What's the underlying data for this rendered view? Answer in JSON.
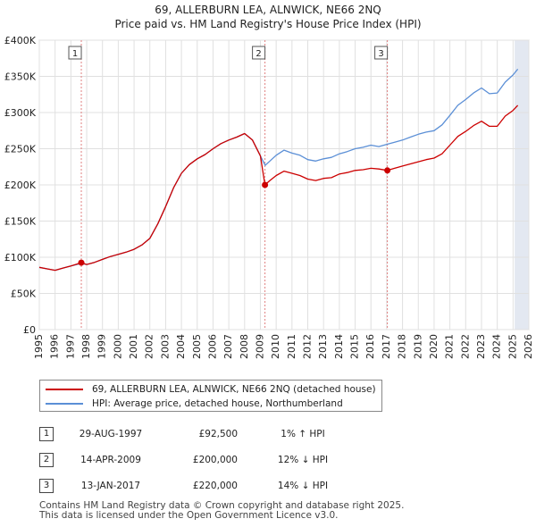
{
  "title_line1": "69, ALLERBURN LEA, ALNWICK, NE66 2NQ",
  "title_line2": "Price paid vs. HM Land Registry's House Price Index (HPI)",
  "legend": {
    "property": "69, ALLERBURN LEA, ALNWICK, NE66 2NQ (detached house)",
    "hpi": "HPI: Average price, detached house, Northumberland"
  },
  "transactions": [
    {
      "num": "1",
      "date": "29-AUG-1997",
      "price": "£92,500",
      "hpi": "1% ↑ HPI"
    },
    {
      "num": "2",
      "date": "14-APR-2009",
      "price": "£200,000",
      "hpi": "12% ↓ HPI"
    },
    {
      "num": "3",
      "date": "13-JAN-2017",
      "price": "£220,000",
      "hpi": "14% ↓ HPI"
    }
  ],
  "footer": {
    "line1": "Contains HM Land Registry data © Crown copyright and database right 2025.",
    "line2": "This data is licensed under the Open Government Licence v3.0."
  },
  "chart_data": {
    "type": "line",
    "xlabel": "",
    "ylabel": "",
    "xlim": [
      1995,
      2026
    ],
    "ylim": [
      0,
      400000
    ],
    "ytick_labels": [
      "£0",
      "£50K",
      "£100K",
      "£150K",
      "£200K",
      "£250K",
      "£300K",
      "£350K",
      "£400K"
    ],
    "ytick_values": [
      0,
      50000,
      100000,
      150000,
      200000,
      250000,
      300000,
      350000,
      400000
    ],
    "xtick_labels": [
      "1995",
      "1996",
      "1997",
      "1998",
      "1999",
      "2000",
      "2001",
      "2002",
      "2003",
      "2004",
      "2005",
      "2006",
      "2007",
      "2008",
      "2009",
      "2010",
      "2011",
      "2012",
      "2013",
      "2014",
      "2015",
      "2016",
      "2017",
      "2018",
      "2019",
      "2020",
      "2021",
      "2022",
      "2023",
      "2024",
      "2025",
      "2026"
    ],
    "xtick_values": [
      1995,
      1996,
      1997,
      1998,
      1999,
      2000,
      2001,
      2002,
      2003,
      2004,
      2005,
      2006,
      2007,
      2008,
      2009,
      2010,
      2011,
      2012,
      2013,
      2014,
      2015,
      2016,
      2017,
      2018,
      2019,
      2020,
      2021,
      2022,
      2023,
      2024,
      2025,
      2026
    ],
    "forecast_start": 2025.1,
    "sales": [
      {
        "label": "1",
        "x": 1997.66,
        "y": 92500
      },
      {
        "label": "2",
        "x": 2009.29,
        "y": 200000
      },
      {
        "label": "3",
        "x": 2017.04,
        "y": 220000
      }
    ],
    "series": [
      {
        "name": "HPI: Average price, detached house, Northumberland",
        "color": "#5b8fd6",
        "x": [
          1995,
          1995.5,
          1996,
          1996.5,
          1997,
          1997.66,
          1998,
          1998.5,
          1999,
          1999.5,
          2000,
          2000.5,
          2001,
          2001.5,
          2002,
          2002.5,
          2003,
          2003.5,
          2004,
          2004.5,
          2005,
          2005.5,
          2006,
          2006.5,
          2007,
          2007.5,
          2008,
          2008.5,
          2009,
          2009.3,
          2009.6,
          2010,
          2010.5,
          2011,
          2011.5,
          2012,
          2012.5,
          2013,
          2013.5,
          2014,
          2014.5,
          2015,
          2015.5,
          2016,
          2016.5,
          2017,
          2017.5,
          2018,
          2018.5,
          2019,
          2019.5,
          2020,
          2020.5,
          2021,
          2021.5,
          2022,
          2022.5,
          2023,
          2023.5,
          2024,
          2024.5,
          2025,
          2025.3
        ],
        "values": [
          86000,
          84000,
          82000,
          85000,
          88000,
          91500,
          90000,
          93000,
          97000,
          101000,
          104000,
          107000,
          111000,
          117000,
          126000,
          146000,
          170000,
          196000,
          216000,
          228000,
          236000,
          242000,
          250000,
          257000,
          262000,
          266000,
          271000,
          262000,
          240000,
          227000,
          233000,
          241000,
          248000,
          244000,
          241000,
          235000,
          233000,
          236000,
          238000,
          243000,
          246000,
          250000,
          252000,
          255000,
          253000,
          256000,
          259000,
          262000,
          266000,
          270000,
          273000,
          275000,
          283000,
          296000,
          310000,
          318000,
          327000,
          334000,
          326000,
          327000,
          342000,
          352000,
          360000
        ]
      },
      {
        "name": "69, ALLERBURN LEA, ALNWICK, NE66 2NQ (detached house)",
        "color": "#cc0000",
        "x": [
          1995,
          1995.5,
          1996,
          1996.5,
          1997,
          1997.66,
          1998,
          1998.5,
          1999,
          1999.5,
          2000,
          2000.5,
          2001,
          2001.5,
          2002,
          2002.5,
          2003,
          2003.5,
          2004,
          2004.5,
          2005,
          2005.5,
          2006,
          2006.5,
          2007,
          2007.5,
          2008,
          2008.5,
          2009,
          2009.29,
          2009.6,
          2010,
          2010.5,
          2011,
          2011.5,
          2012,
          2012.5,
          2013,
          2013.5,
          2014,
          2014.5,
          2015,
          2015.5,
          2016,
          2016.5,
          2017.04,
          2017.5,
          2018,
          2018.5,
          2019,
          2019.5,
          2020,
          2020.5,
          2021,
          2021.5,
          2022,
          2022.5,
          2023,
          2023.5,
          2024,
          2024.5,
          2025,
          2025.3
        ],
        "values": [
          86000,
          84000,
          82000,
          85000,
          88000,
          92500,
          90000,
          93000,
          97000,
          101000,
          104000,
          107000,
          111000,
          117000,
          126000,
          146000,
          170000,
          196000,
          216000,
          228000,
          236000,
          242000,
          250000,
          257000,
          262000,
          266000,
          271000,
          262000,
          240000,
          200000,
          206000,
          213000,
          219000,
          216000,
          213000,
          208000,
          206000,
          209000,
          210000,
          215000,
          217000,
          220000,
          221000,
          223000,
          222000,
          220000,
          223000,
          226000,
          229000,
          232000,
          235000,
          237000,
          243000,
          255000,
          267000,
          274000,
          282000,
          288000,
          281000,
          281000,
          295000,
          303000,
          310000
        ]
      }
    ]
  }
}
